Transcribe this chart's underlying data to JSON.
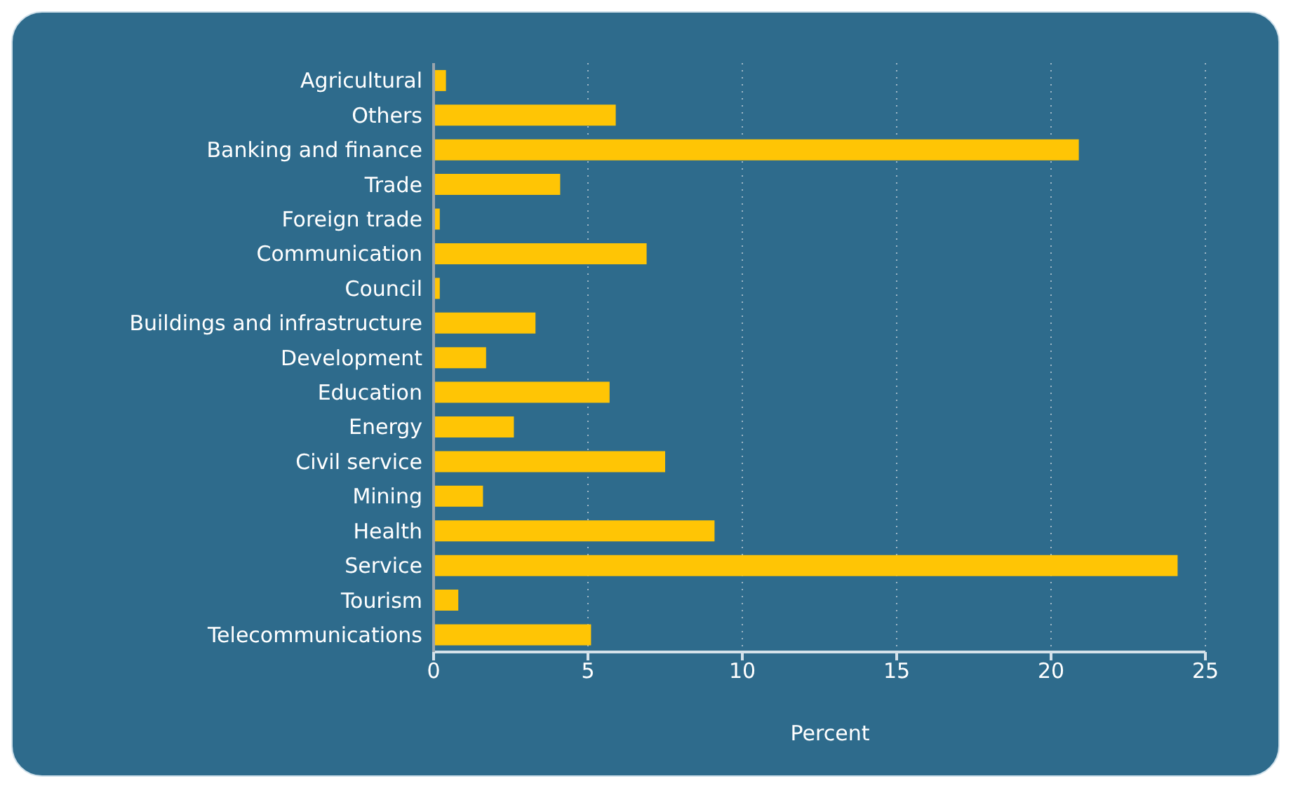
{
  "chart_data": {
    "type": "bar",
    "orientation": "horizontal",
    "xlabel": "Percent",
    "categories": [
      "Agricultural",
      "Others",
      "Banking and finance",
      "Trade",
      "Foreign trade",
      "Communication",
      "Council",
      "Buildings and infrastructure",
      "Development",
      "Education",
      "Energy",
      "Civil service",
      "Mining",
      "Health",
      "Service",
      "Tourism",
      "Telecommunications"
    ],
    "values": [
      0.4,
      5.9,
      20.9,
      4.1,
      0.2,
      6.9,
      0.2,
      3.3,
      1.7,
      5.7,
      2.6,
      7.5,
      1.6,
      9.1,
      24.1,
      0.8,
      5.1
    ],
    "color": "#ffc505",
    "xlim": [
      0,
      25
    ],
    "xticks": [
      0,
      5,
      10,
      15,
      20,
      25
    ],
    "grid": "x"
  }
}
